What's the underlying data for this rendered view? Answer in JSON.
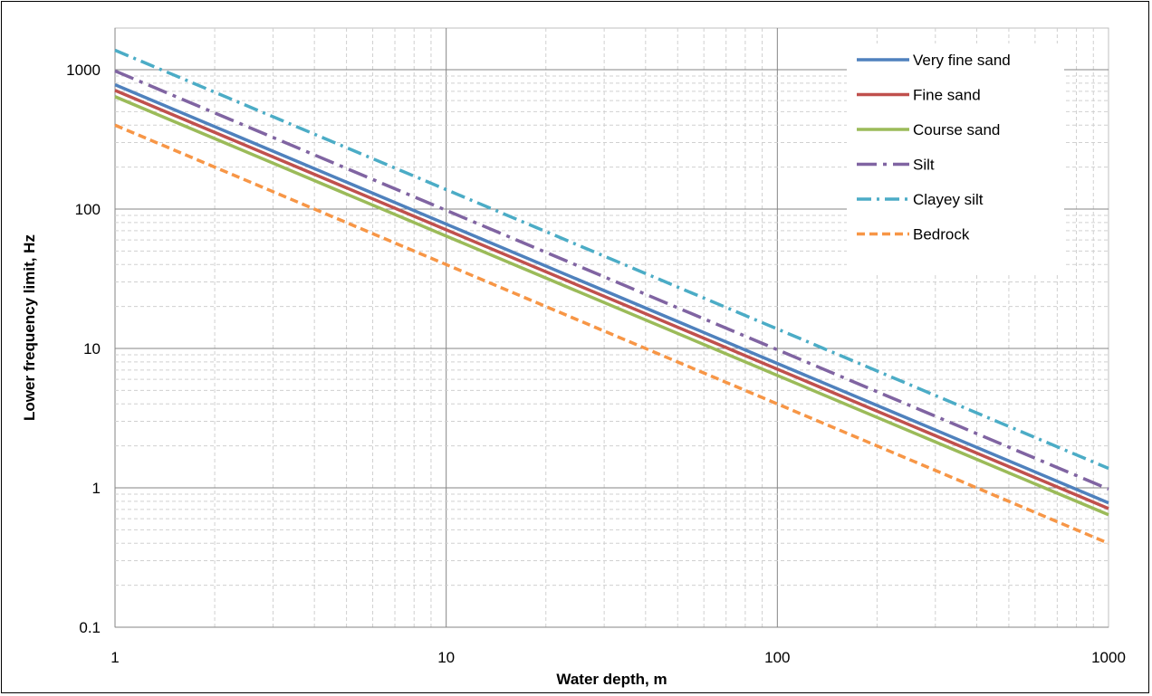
{
  "chart_data": {
    "type": "line",
    "title": "",
    "xlabel": "Water depth, m",
    "ylabel": "Lower frequency limit, Hz",
    "xscale": "log",
    "yscale": "log",
    "xlim": [
      1,
      1000
    ],
    "ylim": [
      0.1,
      1000
    ],
    "grid": true,
    "legend_position": "top-right",
    "x_ticks": [
      "1",
      "10",
      "100",
      "1000"
    ],
    "y_ticks": [
      "0.1",
      "1",
      "10",
      "100",
      "1000"
    ],
    "series": [
      {
        "name": "Very fine sand",
        "x": [
          1,
          1000
        ],
        "y": [
          780,
          0.78
        ],
        "color": "#4F81BD",
        "dash": "solid"
      },
      {
        "name": "Fine sand",
        "x": [
          1,
          1000
        ],
        "y": [
          710,
          0.71
        ],
        "color": "#C0504D",
        "dash": "solid"
      },
      {
        "name": "Course sand",
        "x": [
          1,
          1000
        ],
        "y": [
          640,
          0.64
        ],
        "color": "#9BBB59",
        "dash": "solid"
      },
      {
        "name": "Silt",
        "x": [
          1,
          1000
        ],
        "y": [
          980,
          0.98
        ],
        "color": "#8064A2",
        "dash": "long-dash-dot"
      },
      {
        "name": "Clayey silt",
        "x": [
          1,
          1000
        ],
        "y": [
          1380,
          1.38
        ],
        "color": "#4BACC6",
        "dash": "dash-dot"
      },
      {
        "name": "Bedrock",
        "x": [
          1,
          1000
        ],
        "y": [
          400,
          0.4
        ],
        "color": "#F79646",
        "dash": "dash"
      }
    ]
  }
}
